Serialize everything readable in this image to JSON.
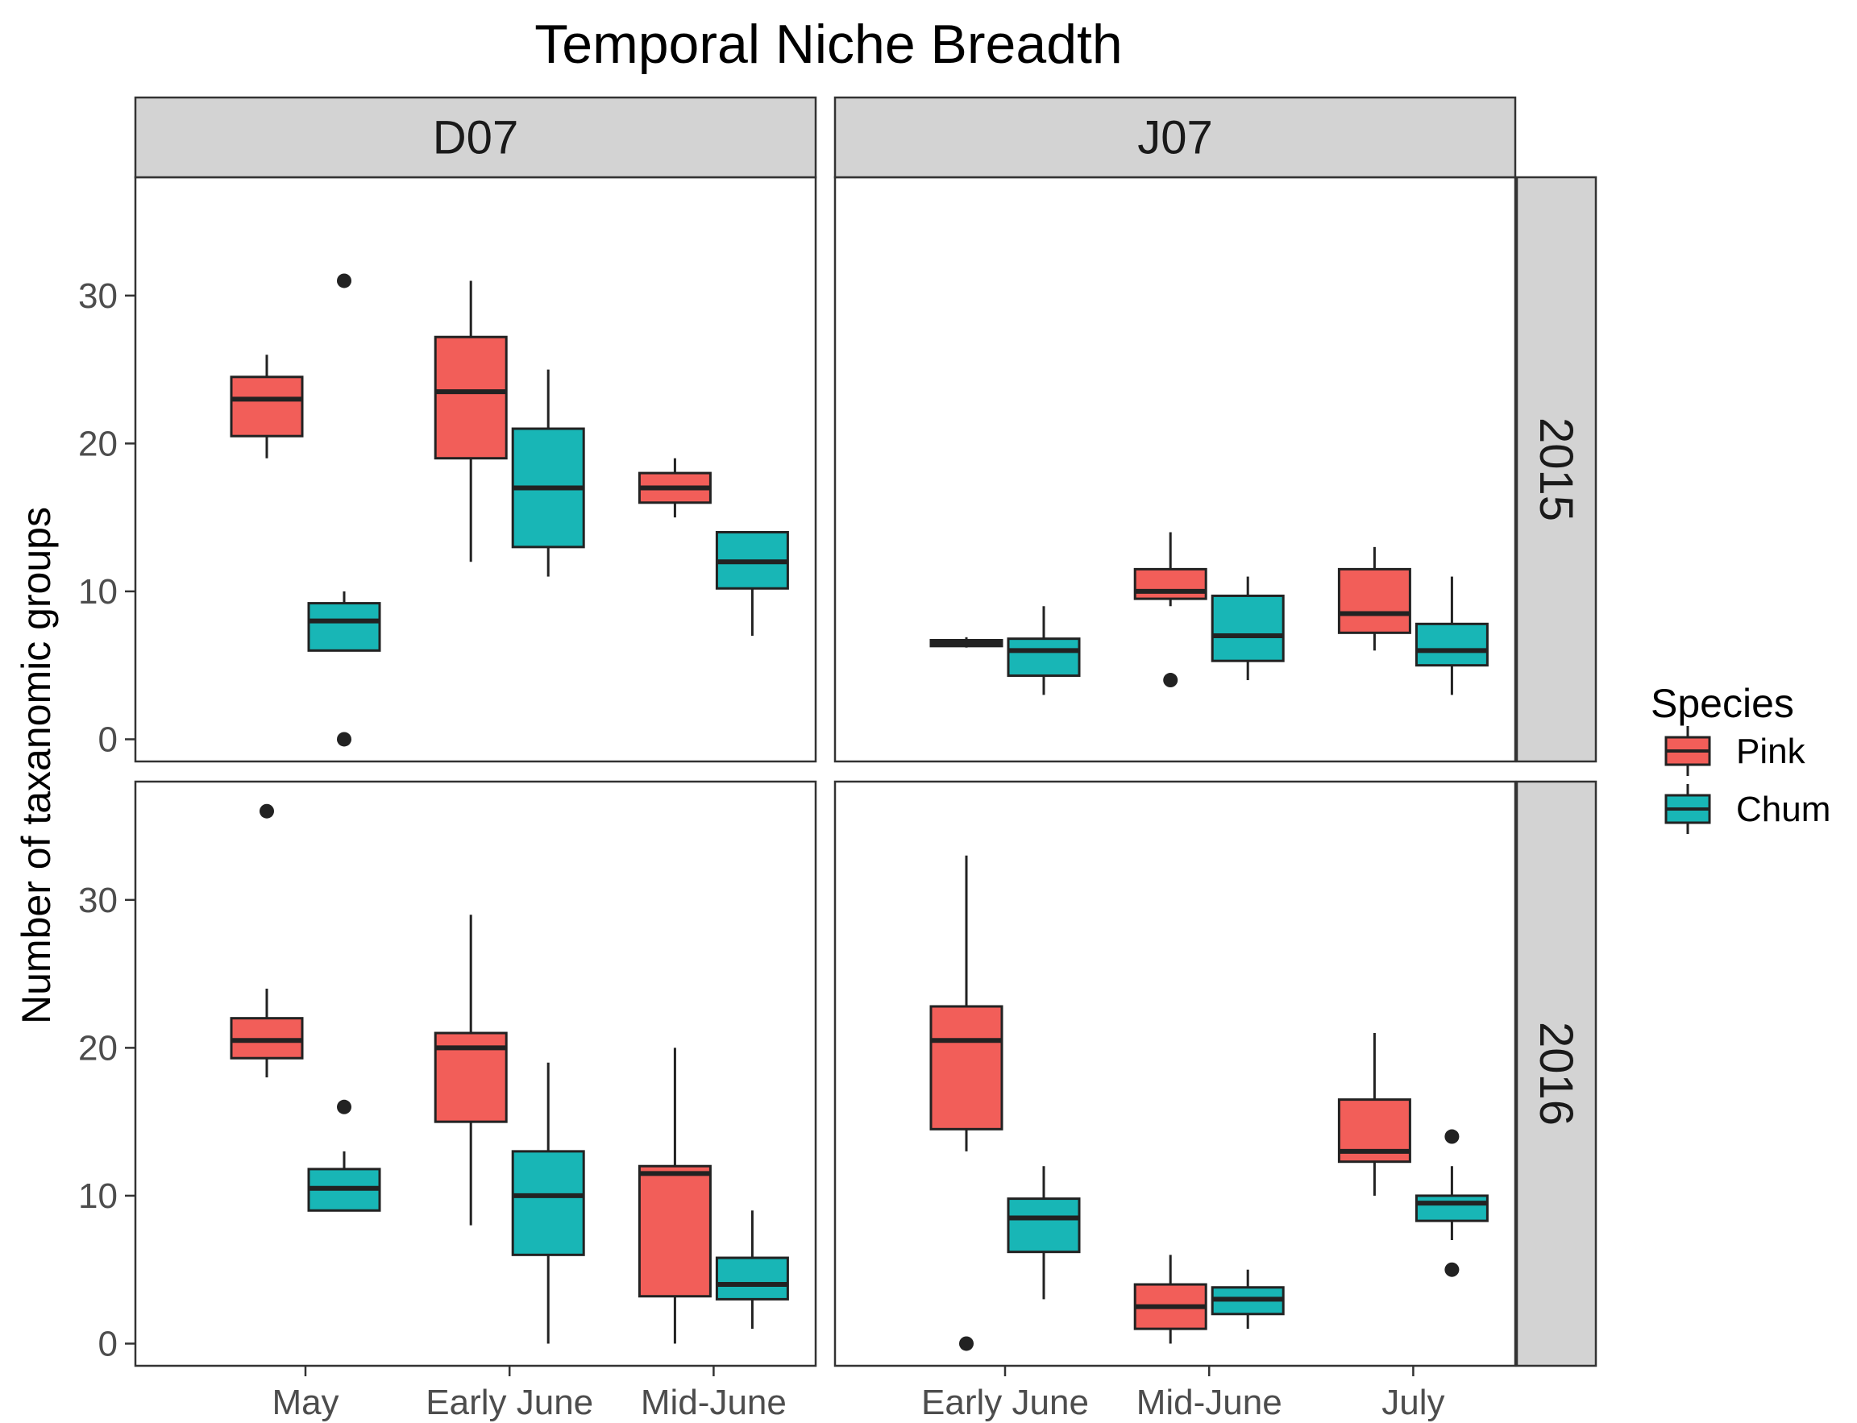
{
  "colors": {
    "Pink": "#F25E59",
    "Chum": "#18B6B6",
    "strip_fill": "#D3D3D3",
    "frame": "#333333",
    "box_line": "#222222"
  },
  "chart_data": {
    "type": "boxplot",
    "title": "Temporal Niche Breadth",
    "ylabel": "Number of taxanomic groups",
    "ylim": [
      -1.5,
      38
    ],
    "yticks": [
      0,
      10,
      20,
      30
    ],
    "grid": false,
    "legend": {
      "title": "Species",
      "position": "right",
      "entries": [
        "Pink",
        "Chum"
      ]
    },
    "columns": [
      "D07",
      "J07"
    ],
    "rows": [
      "2015",
      "2016"
    ],
    "categories": {
      "D07": [
        "May",
        "Early June",
        "Mid-June"
      ],
      "J07": [
        "Early June",
        "Mid-June",
        "July"
      ]
    },
    "panels": [
      {
        "column": "D07",
        "row": "2015",
        "boxes": [
          {
            "category": "May",
            "species": "Pink",
            "lower_whisker": 19,
            "q1": 20.5,
            "median": 23,
            "q3": 24.5,
            "upper_whisker": 26,
            "outliers": []
          },
          {
            "category": "May",
            "species": "Chum",
            "lower_whisker": 6,
            "q1": 6,
            "median": 8,
            "q3": 9.2,
            "upper_whisker": 10,
            "outliers": [
              0,
              31
            ]
          },
          {
            "category": "Early June",
            "species": "Pink",
            "lower_whisker": 12,
            "q1": 19,
            "median": 23.5,
            "q3": 27.2,
            "upper_whisker": 31,
            "outliers": []
          },
          {
            "category": "Early June",
            "species": "Chum",
            "lower_whisker": 11,
            "q1": 13,
            "median": 17,
            "q3": 21,
            "upper_whisker": 25,
            "outliers": []
          },
          {
            "category": "Mid-June",
            "species": "Pink",
            "lower_whisker": 15,
            "q1": 16,
            "median": 17,
            "q3": 18,
            "upper_whisker": 19,
            "outliers": []
          },
          {
            "category": "Mid-June",
            "species": "Chum",
            "lower_whisker": 7,
            "q1": 10.2,
            "median": 12,
            "q3": 14,
            "upper_whisker": 14,
            "outliers": []
          }
        ]
      },
      {
        "column": "J07",
        "row": "2015",
        "boxes": [
          {
            "category": "Early June",
            "species": "Pink",
            "lower_whisker": 6.2,
            "q1": 6.3,
            "median": 6.5,
            "q3": 6.7,
            "upper_whisker": 6.9,
            "outliers": []
          },
          {
            "category": "Early June",
            "species": "Chum",
            "lower_whisker": 3,
            "q1": 4.3,
            "median": 6,
            "q3": 6.8,
            "upper_whisker": 9,
            "outliers": []
          },
          {
            "category": "Mid-June",
            "species": "Pink",
            "lower_whisker": 9,
            "q1": 9.5,
            "median": 10,
            "q3": 11.5,
            "upper_whisker": 14,
            "outliers": [
              4
            ]
          },
          {
            "category": "Mid-June",
            "species": "Chum",
            "lower_whisker": 4,
            "q1": 5.3,
            "median": 7,
            "q3": 9.7,
            "upper_whisker": 11,
            "outliers": []
          },
          {
            "category": "July",
            "species": "Pink",
            "lower_whisker": 6,
            "q1": 7.2,
            "median": 8.5,
            "q3": 11.5,
            "upper_whisker": 13,
            "outliers": []
          },
          {
            "category": "July",
            "species": "Chum",
            "lower_whisker": 3,
            "q1": 5,
            "median": 6,
            "q3": 7.8,
            "upper_whisker": 11,
            "outliers": []
          }
        ]
      },
      {
        "column": "D07",
        "row": "2016",
        "boxes": [
          {
            "category": "May",
            "species": "Pink",
            "lower_whisker": 18,
            "q1": 19.3,
            "median": 20.5,
            "q3": 22,
            "upper_whisker": 24,
            "outliers": [
              36
            ]
          },
          {
            "category": "May",
            "species": "Chum",
            "lower_whisker": 9,
            "q1": 9,
            "median": 10.5,
            "q3": 11.8,
            "upper_whisker": 13,
            "outliers": [
              16
            ]
          },
          {
            "category": "Early June",
            "species": "Pink",
            "lower_whisker": 8,
            "q1": 15,
            "median": 20,
            "q3": 21,
            "upper_whisker": 29,
            "outliers": []
          },
          {
            "category": "Early June",
            "species": "Chum",
            "lower_whisker": 0,
            "q1": 6,
            "median": 10,
            "q3": 13,
            "upper_whisker": 19,
            "outliers": []
          },
          {
            "category": "Mid-June",
            "species": "Pink",
            "lower_whisker": 0,
            "q1": 3.2,
            "median": 11.5,
            "q3": 12,
            "upper_whisker": 20,
            "outliers": []
          },
          {
            "category": "Mid-June",
            "species": "Chum",
            "lower_whisker": 1,
            "q1": 3,
            "median": 4,
            "q3": 5.8,
            "upper_whisker": 9,
            "outliers": []
          }
        ]
      },
      {
        "column": "J07",
        "row": "2016",
        "boxes": [
          {
            "category": "Early June",
            "species": "Pink",
            "lower_whisker": 13,
            "q1": 14.5,
            "median": 20.5,
            "q3": 22.8,
            "upper_whisker": 33,
            "outliers": [
              0
            ]
          },
          {
            "category": "Early June",
            "species": "Chum",
            "lower_whisker": 3,
            "q1": 6.2,
            "median": 8.5,
            "q3": 9.8,
            "upper_whisker": 12,
            "outliers": []
          },
          {
            "category": "Mid-June",
            "species": "Pink",
            "lower_whisker": 0,
            "q1": 1,
            "median": 2.5,
            "q3": 4,
            "upper_whisker": 6,
            "outliers": []
          },
          {
            "category": "Mid-June",
            "species": "Chum",
            "lower_whisker": 1,
            "q1": 2,
            "median": 3,
            "q3": 3.8,
            "upper_whisker": 5,
            "outliers": []
          },
          {
            "category": "July",
            "species": "Pink",
            "lower_whisker": 10,
            "q1": 12.3,
            "median": 13,
            "q3": 16.5,
            "upper_whisker": 21,
            "outliers": []
          },
          {
            "category": "July",
            "species": "Chum",
            "lower_whisker": 7,
            "q1": 8.3,
            "median": 9.5,
            "q3": 10,
            "upper_whisker": 12,
            "outliers": [
              5,
              14
            ]
          }
        ]
      }
    ]
  }
}
